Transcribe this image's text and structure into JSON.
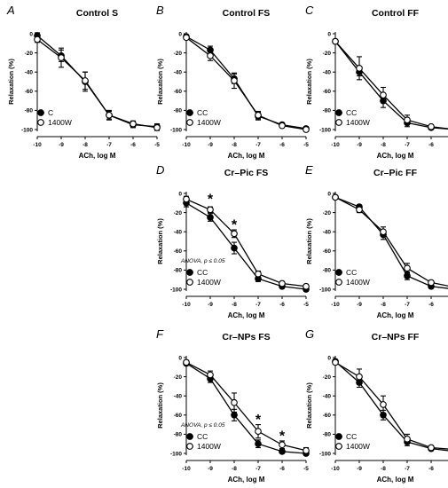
{
  "chart_data": [
    {
      "type": "line",
      "letter": "A",
      "title": "Control S",
      "xlabel": "ACh, log M",
      "ylabel": "Relaxation (%)",
      "x": [
        -10,
        -9,
        -8,
        -7,
        -6,
        -5
      ],
      "xticks": [
        "-10",
        "-9",
        "-8",
        "-7",
        "-6",
        "-5"
      ],
      "yticks": [
        "0",
        "-20",
        "-40",
        "-60",
        "-80",
        "-100"
      ],
      "xlim": [
        -10,
        -5
      ],
      "ylim": [
        -100,
        0
      ],
      "series": [
        {
          "name": "C",
          "marker": "filled",
          "values": [
            -2,
            -23,
            -50,
            -85,
            -95,
            -97
          ],
          "err": [
            3,
            6,
            10,
            4,
            3,
            3
          ]
        },
        {
          "name": "1400W",
          "marker": "open",
          "values": [
            -6,
            -25,
            -49,
            -85,
            -94,
            -98
          ],
          "err": [
            3,
            10,
            9,
            5,
            3,
            3
          ]
        }
      ],
      "legend": "lower-left",
      "anova": "",
      "stars": []
    },
    {
      "type": "line",
      "letter": "B",
      "title": "Control FS",
      "xlabel": "ACh, log M",
      "ylabel": "Relaxation (%)",
      "x": [
        -10,
        -9,
        -8,
        -7,
        -6,
        -5
      ],
      "xticks": [
        "-10",
        "-9",
        "-8",
        "-7",
        "-6",
        "-5"
      ],
      "yticks": [
        "0",
        "-20",
        "-40",
        "-60",
        "-80",
        "-100"
      ],
      "xlim": [
        -10,
        -5
      ],
      "ylim": [
        -100,
        0
      ],
      "series": [
        {
          "name": "CC",
          "marker": "filled",
          "values": [
            -3,
            -17,
            -47,
            -86,
            -95,
            -99
          ],
          "err": [
            2,
            4,
            5,
            4,
            2,
            2
          ]
        },
        {
          "name": "1400W",
          "marker": "open",
          "values": [
            -4,
            -23,
            -49,
            -85,
            -96,
            -100
          ],
          "err": [
            2,
            5,
            8,
            4,
            2,
            2
          ]
        }
      ],
      "legend": "lower-left",
      "anova": "",
      "stars": []
    },
    {
      "type": "line",
      "letter": "C",
      "title": "Control FF",
      "xlabel": "ACh, log M",
      "ylabel": "Relaxation (%)",
      "x": [
        -10,
        -9,
        -8,
        -7,
        -6,
        -5
      ],
      "xticks": [
        "-10",
        "-9",
        "-8",
        "-7",
        "-6",
        "-5"
      ],
      "yticks": [
        "0",
        "-20",
        "-40",
        "-60",
        "-80",
        "-100"
      ],
      "xlim": [
        -10,
        -5
      ],
      "ylim": [
        -100,
        0
      ],
      "series": [
        {
          "name": "CC",
          "marker": "filled",
          "values": [
            -8,
            -40,
            -70,
            -93,
            -98,
            -100
          ],
          "err": [
            2,
            4,
            7,
            4,
            2,
            1
          ]
        },
        {
          "name": "1400W",
          "marker": "open",
          "values": [
            -8,
            -36,
            -64,
            -90,
            -97,
            -100
          ],
          "err": [
            2,
            12,
            8,
            5,
            2,
            1
          ]
        }
      ],
      "legend": "lower-left",
      "anova": "",
      "stars": []
    },
    {
      "type": "line",
      "letter": "D",
      "title": "Cr–Pic FS",
      "xlabel": "ACh, log M",
      "ylabel": "Relaxation (%)",
      "x": [
        -10,
        -9,
        -8,
        -7,
        -6,
        -5
      ],
      "xticks": [
        "-10",
        "-9",
        "-8",
        "-7",
        "-6",
        "-5"
      ],
      "yticks": [
        "0",
        "-20",
        "-40",
        "-60",
        "-80",
        "-100"
      ],
      "xlim": [
        -10,
        -5
      ],
      "ylim": [
        -100,
        0
      ],
      "series": [
        {
          "name": "CC",
          "marker": "filled",
          "values": [
            -10,
            -25,
            -57,
            -89,
            -97,
            -100
          ],
          "err": [
            4,
            4,
            6,
            3,
            2,
            2
          ]
        },
        {
          "name": "1400W",
          "marker": "open",
          "values": [
            -6,
            -17,
            -42,
            -84,
            -94,
            -97
          ],
          "err": [
            3,
            3,
            4,
            3,
            2,
            2
          ]
        }
      ],
      "legend": "lower-left",
      "anova": "ANOVA, p ≤ 0.05",
      "stars": [
        {
          "x": -9,
          "y": -4
        },
        {
          "x": -8,
          "y": -31
        }
      ]
    },
    {
      "type": "line",
      "letter": "E",
      "title": "Cr–Pic FF",
      "xlabel": "ACh, log M",
      "ylabel": "Relaxation (%)",
      "x": [
        -10,
        -9,
        -8,
        -7,
        -6,
        -5
      ],
      "xticks": [
        "-10",
        "-9",
        "-8",
        "-7",
        "-6",
        "-5"
      ],
      "yticks": [
        "0",
        "-20",
        "-40",
        "-60",
        "-80",
        "-100"
      ],
      "xlim": [
        -10,
        -5
      ],
      "ylim": [
        -100,
        0
      ],
      "series": [
        {
          "name": "CC",
          "marker": "filled",
          "values": [
            -4,
            -14,
            -43,
            -86,
            -97,
            -100
          ],
          "err": [
            2,
            2,
            5,
            4,
            2,
            2
          ]
        },
        {
          "name": "1400W",
          "marker": "open",
          "values": [
            -4,
            -17,
            -40,
            -78,
            -93,
            -98
          ],
          "err": [
            2,
            3,
            5,
            5,
            2,
            2
          ]
        }
      ],
      "legend": "lower-left",
      "anova": "",
      "stars": []
    },
    {
      "type": "line",
      "letter": "F",
      "title": "Cr–NPs FS",
      "xlabel": "ACh, log M",
      "ylabel": "Relaxation (%)",
      "x": [
        -10,
        -9,
        -8,
        -7,
        -6,
        -5
      ],
      "xticks": [
        "-10",
        "-9",
        "-8",
        "-7",
        "-6",
        "-5"
      ],
      "yticks": [
        "0",
        "-20",
        "-40",
        "-60",
        "-80",
        "-100"
      ],
      "xlim": [
        -10,
        -5
      ],
      "ylim": [
        -100,
        0
      ],
      "series": [
        {
          "name": "CC",
          "marker": "filled",
          "values": [
            -6,
            -22,
            -60,
            -90,
            -98,
            -100
          ],
          "err": [
            2,
            4,
            6,
            4,
            2,
            2
          ]
        },
        {
          "name": "1400W",
          "marker": "open",
          "values": [
            -5,
            -18,
            -47,
            -77,
            -91,
            -97
          ],
          "err": [
            2,
            4,
            10,
            7,
            4,
            3
          ]
        }
      ],
      "legend": "lower-left",
      "anova": "ANOVA, p ≤ 0.05",
      "stars": [
        {
          "x": -7,
          "y": -63
        },
        {
          "x": -6,
          "y": -80
        }
      ]
    },
    {
      "type": "line",
      "letter": "G",
      "title": "Cr–NPs FF",
      "xlabel": "ACh, log M",
      "ylabel": "Relaxation (%)",
      "x": [
        -10,
        -9,
        -8,
        -7,
        -6,
        -5
      ],
      "xticks": [
        "-10",
        "-9",
        "-8",
        "-7",
        "-6",
        "-5"
      ],
      "yticks": [
        "0",
        "-20",
        "-40",
        "-60",
        "-80",
        "-100"
      ],
      "xlim": [
        -10,
        -5
      ],
      "ylim": [
        -100,
        0
      ],
      "series": [
        {
          "name": "CC",
          "marker": "filled",
          "values": [
            -4,
            -26,
            -60,
            -88,
            -95,
            -98
          ],
          "err": [
            2,
            5,
            5,
            4,
            2,
            2
          ]
        },
        {
          "name": "1400W",
          "marker": "open",
          "values": [
            -5,
            -20,
            -49,
            -85,
            -94,
            -96
          ],
          "err": [
            2,
            8,
            9,
            5,
            2,
            2
          ]
        }
      ],
      "legend": "lower-left",
      "anova": "",
      "stars": []
    }
  ]
}
